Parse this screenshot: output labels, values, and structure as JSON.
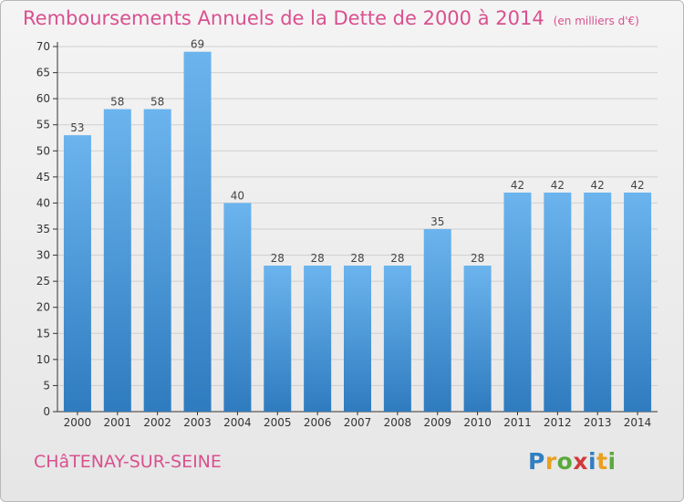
{
  "title": "Remboursements Annuels de la Dette de 2000 à 2014",
  "unit": "(en milliers d'€)",
  "commune": "CHâTENAY-SUR-SEINE",
  "logo": {
    "letters": [
      "P",
      "r",
      "o",
      "x",
      "i",
      "t",
      "i"
    ],
    "colors": [
      "#2f7fc1",
      "#e8a020",
      "#5aaa3a",
      "#d03a3a",
      "#2f7fc1",
      "#e8a020",
      "#5aaa3a"
    ]
  },
  "colors": {
    "bar_top": "#6bb4ee",
    "bar_bottom": "#2f7bbf",
    "title": "#d9508f",
    "axis": "#333333",
    "grid": "#cfcfcf"
  },
  "chart_data": {
    "type": "bar",
    "categories": [
      "2000",
      "2001",
      "2002",
      "2003",
      "2004",
      "2005",
      "2006",
      "2007",
      "2008",
      "2009",
      "2010",
      "2011",
      "2012",
      "2013",
      "2014"
    ],
    "values": [
      53,
      58,
      58,
      69,
      40,
      28,
      28,
      28,
      28,
      35,
      28,
      42,
      42,
      42,
      42
    ],
    "yticks": [
      0,
      5,
      10,
      15,
      20,
      25,
      30,
      35,
      40,
      45,
      50,
      55,
      60,
      65,
      70
    ],
    "ylim": [
      0,
      70
    ],
    "grid": true
  }
}
